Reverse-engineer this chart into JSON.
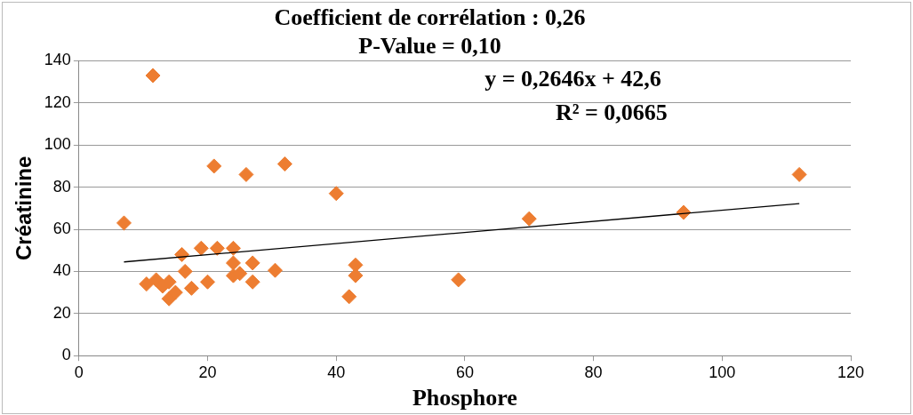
{
  "chart_data": {
    "type": "scatter",
    "title": "Coefficient de corrélation : 0,26",
    "subtitle": "P-Value = 0,10",
    "xlabel": "Phosphore",
    "ylabel": "Créatinine",
    "annotations": [
      "y = 0,2646x + 42,6",
      "R² = 0,0665"
    ],
    "xlim": [
      0,
      120
    ],
    "xticks": [
      0,
      20,
      40,
      60,
      80,
      100,
      120
    ],
    "ylim": [
      0,
      140
    ],
    "yticks": [
      0,
      20,
      40,
      60,
      80,
      100,
      120,
      140
    ],
    "grid": "y",
    "legend": false,
    "marker": "diamond",
    "series": [
      {
        "color": "#ed7d31",
        "x": [
          7,
          11.5,
          21,
          26,
          32,
          40,
          70,
          94,
          112,
          59,
          42,
          43,
          43,
          10.5,
          12,
          14,
          14,
          15,
          16,
          16.5,
          17.5,
          19,
          20,
          21.5,
          24,
          24,
          24,
          25,
          27,
          27,
          30.5,
          13,
          15
        ],
        "values": [
          63,
          133,
          90,
          86,
          91,
          77,
          65,
          68,
          86,
          36,
          28,
          43,
          38,
          34,
          36,
          35,
          27,
          null,
          48,
          40,
          32,
          51,
          35,
          51,
          51,
          44,
          38,
          39,
          44,
          35,
          40.5,
          33,
          30
        ]
      },
      {
        "type": "line",
        "color": "#000000",
        "marker": "none",
        "x": [
          7,
          112
        ],
        "values": [
          44.5,
          72.2
        ]
      }
    ]
  }
}
